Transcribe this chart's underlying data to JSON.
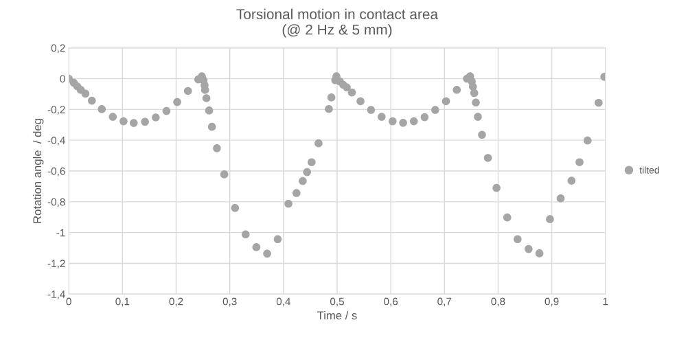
{
  "chart_data": {
    "type": "scatter",
    "title": "Torsional motion in contact area\n(@ 2 Hz & 5 mm)",
    "xlabel": "Time / s",
    "ylabel": "Rotation angle  / deg",
    "x": [
      0,
      0.0094,
      0.0158,
      0.0224,
      0.031,
      0.043,
      0.0615,
      0.082,
      0.102,
      0.121,
      0.142,
      0.162,
      0.182,
      0.202,
      0.222,
      0.2414,
      0.248,
      0.251,
      0.253,
      0.254,
      0.2564,
      0.2615,
      0.2667,
      0.276,
      0.2897,
      0.3098,
      0.3295,
      0.3495,
      0.3696,
      0.3893,
      0.4093,
      0.4243,
      0.4359,
      0.444,
      0.4525,
      0.4654,
      0.4846,
      0.4893,
      0.4966,
      0.4987,
      0.5051,
      0.5115,
      0.518,
      0.5275,
      0.5436,
      0.5632,
      0.583,
      0.6034,
      0.623,
      0.643,
      0.663,
      0.6828,
      0.7029,
      0.723,
      0.742,
      0.7478,
      0.751,
      0.753,
      0.7555,
      0.7585,
      0.7623,
      0.77,
      0.781,
      0.797,
      0.817,
      0.8363,
      0.8568,
      0.877,
      0.8966,
      0.9165,
      0.9368,
      0.9517,
      0.9667,
      0.9873,
      0.998
    ],
    "series": [
      {
        "name": "tilted",
        "color": "#a5a5a5",
        "values": [
          0,
          -0.027,
          -0.05,
          -0.073,
          -0.097,
          -0.143,
          -0.198,
          -0.248,
          -0.277,
          -0.288,
          -0.28,
          -0.252,
          -0.21,
          -0.152,
          -0.08,
          -0.005,
          0.015,
          -0.01,
          -0.043,
          -0.073,
          -0.127,
          -0.207,
          -0.313,
          -0.452,
          -0.622,
          -0.84,
          -1.012,
          -1.095,
          -1.137,
          -1.043,
          -0.813,
          -0.743,
          -0.665,
          -0.607,
          -0.543,
          -0.42,
          -0.197,
          -0.122,
          -0.01,
          0.015,
          -0.018,
          -0.04,
          -0.057,
          -0.09,
          -0.147,
          -0.203,
          -0.248,
          -0.277,
          -0.287,
          -0.277,
          -0.25,
          -0.203,
          -0.147,
          -0.073,
          0.0,
          0.015,
          -0.018,
          -0.052,
          -0.093,
          -0.155,
          -0.248,
          -0.365,
          -0.515,
          -0.71,
          -0.902,
          -1.043,
          -1.107,
          -1.135,
          -0.913,
          -0.778,
          -0.663,
          -0.543,
          -0.402,
          -0.157,
          0.012
        ]
      }
    ],
    "xlim": [
      0,
      1
    ],
    "xticks": [
      0,
      {
        "value": 0.1,
        "label": "0,1"
      },
      {
        "value": 0.2,
        "label": "0,2"
      },
      {
        "value": 0.3,
        "label": "0,3"
      },
      {
        "value": 0.4,
        "label": "0,4"
      },
      {
        "value": 0.5,
        "label": "0,5"
      },
      {
        "value": 0.6,
        "label": "0,6"
      },
      {
        "value": 0.7,
        "label": "0,7"
      },
      {
        "value": 0.8,
        "label": "0,8"
      },
      {
        "value": 0.9,
        "label": "0,9"
      },
      1
    ],
    "ylim": [
      -1.4,
      0.2
    ],
    "yticks": [
      {
        "value": -1.4,
        "label": "-1,4"
      },
      {
        "value": -1.2,
        "label": "-1,2"
      },
      -1,
      {
        "value": -0.8,
        "label": "-0,8"
      },
      {
        "value": -0.6,
        "label": "-0,6"
      },
      {
        "value": -0.4,
        "label": "-0,4"
      },
      {
        "value": -0.2,
        "label": "-0,2"
      },
      0,
      {
        "value": 0.2,
        "label": "0,2"
      }
    ],
    "grid": true,
    "legend": "right",
    "marker": "circle"
  }
}
